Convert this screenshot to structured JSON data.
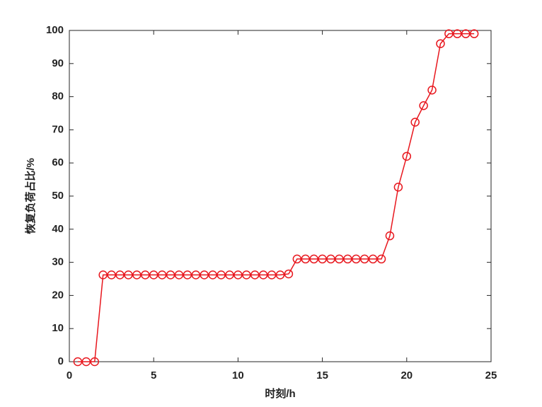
{
  "chart_data": {
    "type": "line",
    "xlabel": "时刻/h",
    "ylabel": "恢复负荷占比/%",
    "x": [
      0.5,
      1,
      1.5,
      2,
      2.5,
      3,
      3.5,
      4,
      4.5,
      5,
      5.5,
      6,
      6.5,
      7,
      7.5,
      8,
      8.5,
      9,
      9.5,
      10,
      10.5,
      11,
      11.5,
      12,
      12.5,
      13,
      13.5,
      14,
      14.5,
      15,
      15.5,
      16,
      16.5,
      17,
      17.5,
      18,
      18.5,
      19,
      19.5,
      20,
      20.5,
      21,
      21.5,
      22,
      22.5,
      23,
      23.5,
      24
    ],
    "series": [
      {
        "color": "#e8171e",
        "marker": "circle",
        "values": [
          0,
          0,
          0,
          26.2,
          26.2,
          26.2,
          26.2,
          26.2,
          26.2,
          26.2,
          26.2,
          26.2,
          26.2,
          26.2,
          26.2,
          26.2,
          26.2,
          26.2,
          26.2,
          26.2,
          26.2,
          26.2,
          26.2,
          26.2,
          26.2,
          26.5,
          31,
          31,
          31,
          31,
          31,
          31,
          31,
          31,
          31,
          31,
          31,
          38,
          52.7,
          62,
          72.3,
          77.3,
          82,
          96,
          99,
          99,
          99,
          99
        ]
      }
    ],
    "xlim": [
      0,
      25
    ],
    "xticks": [
      0,
      5,
      10,
      15,
      20,
      25
    ],
    "ylim": [
      0,
      100
    ],
    "yticks": [
      0,
      10,
      20,
      30,
      40,
      50,
      60,
      70,
      80,
      90,
      100
    ]
  }
}
